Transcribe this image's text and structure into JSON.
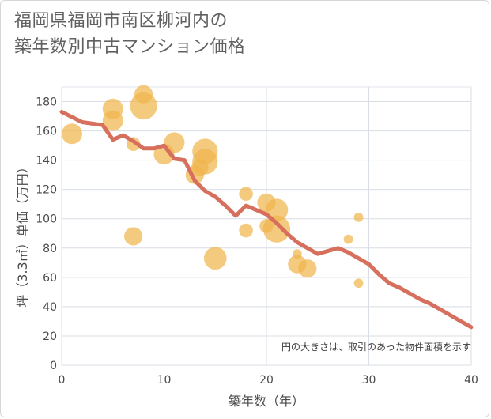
{
  "chart_data": {
    "type": "scatter",
    "title_lines": [
      "福岡県福岡市南区柳河内の",
      "築年数別中古マンション価格"
    ],
    "xlabel": "築年数（年）",
    "ylabel": "坪（3.3㎡）単価（万円）",
    "xlim": [
      0,
      40
    ],
    "ylim": [
      0,
      190
    ],
    "xticks": [
      0,
      10,
      20,
      30,
      40
    ],
    "yticks": [
      0,
      20,
      40,
      60,
      80,
      100,
      120,
      140,
      160,
      180
    ],
    "grid": true,
    "note": "円の大きさは、取引のあった物件面積を示す",
    "colors": {
      "bubble": "#f0b64e",
      "line": "#d6705d",
      "grid": "#d8dde6"
    },
    "bubbles": [
      {
        "x": 1,
        "y": 158,
        "size": 8
      },
      {
        "x": 5,
        "y": 175,
        "size": 8
      },
      {
        "x": 5,
        "y": 167,
        "size": 8
      },
      {
        "x": 7,
        "y": 151,
        "size": 3
      },
      {
        "x": 7,
        "y": 88,
        "size": 6
      },
      {
        "x": 8,
        "y": 185,
        "size": 6
      },
      {
        "x": 8,
        "y": 177,
        "size": 15
      },
      {
        "x": 10,
        "y": 144,
        "size": 8
      },
      {
        "x": 11,
        "y": 152,
        "size": 8
      },
      {
        "x": 13,
        "y": 130,
        "size": 6
      },
      {
        "x": 13.5,
        "y": 135,
        "size": 5
      },
      {
        "x": 14,
        "y": 139,
        "size": 13
      },
      {
        "x": 14,
        "y": 146,
        "size": 13
      },
      {
        "x": 15,
        "y": 73,
        "size": 10
      },
      {
        "x": 18,
        "y": 117,
        "size": 3
      },
      {
        "x": 18,
        "y": 92,
        "size": 3
      },
      {
        "x": 20,
        "y": 111,
        "size": 6
      },
      {
        "x": 20,
        "y": 95,
        "size": 3
      },
      {
        "x": 21,
        "y": 106,
        "size": 10
      },
      {
        "x": 21,
        "y": 93,
        "size": 15
      },
      {
        "x": 23,
        "y": 76,
        "size": 1
      },
      {
        "x": 23,
        "y": 69,
        "size": 6
      },
      {
        "x": 24,
        "y": 66,
        "size": 6
      },
      {
        "x": 28,
        "y": 86,
        "size": 1
      },
      {
        "x": 29,
        "y": 101,
        "size": 1
      },
      {
        "x": 29,
        "y": 56,
        "size": 1
      }
    ],
    "series": [
      {
        "name": "平均坪単価",
        "x": [
          0,
          2,
          4,
          5,
          6,
          7,
          8,
          9,
          10,
          11,
          12,
          13,
          14,
          15,
          16,
          17,
          18,
          19,
          20,
          21,
          22,
          23,
          24,
          25,
          26,
          27,
          28,
          29,
          30,
          31,
          32,
          33,
          34,
          35,
          36,
          37,
          38,
          39,
          40
        ],
        "y": [
          173,
          166,
          164,
          154,
          157,
          153,
          148,
          148,
          150,
          141,
          140,
          126,
          119,
          115,
          109,
          102,
          109,
          106,
          103,
          97,
          90,
          84,
          80,
          76,
          78,
          80,
          77,
          73,
          69,
          62,
          56,
          53,
          49,
          45,
          42,
          38,
          34,
          30,
          26
        ]
      }
    ]
  }
}
